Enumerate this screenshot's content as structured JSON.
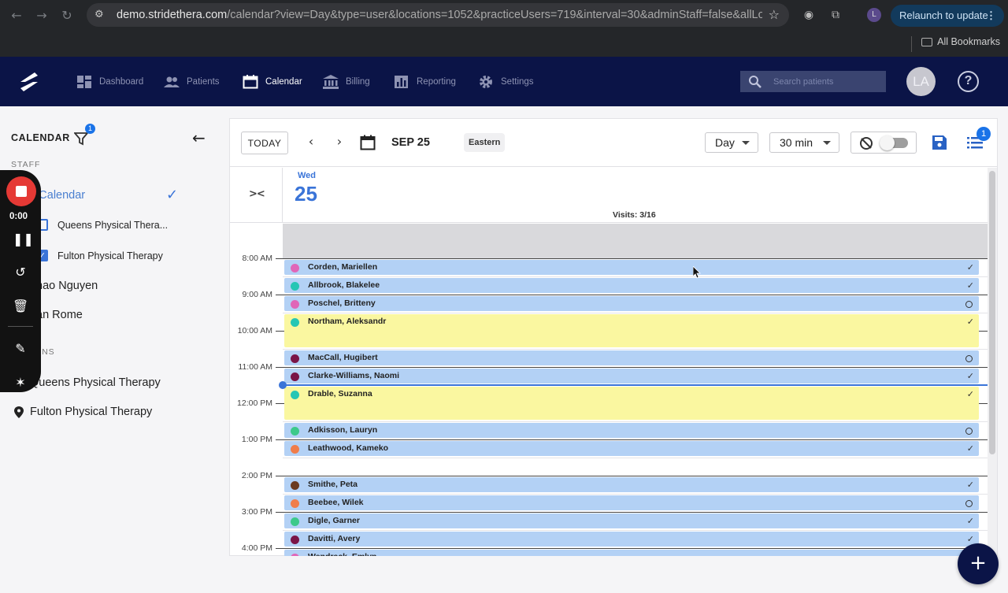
{
  "browser": {
    "url": "demo.stridethera.com/calendar?view=Day&type=user&locations=1052&practiceUsers=719&interval=30&adminStaff=false&allLocati...",
    "url_host": "demo.stridethera.com",
    "url_path": "/calendar?view=Day&type=user&locations=1052&practiceUsers=719&interval=30&adminStaff=false&allLocati...",
    "relaunch_label": "Relaunch to update",
    "profile_initial": "L",
    "bookmarks_label": "All Bookmarks"
  },
  "nav": {
    "items": [
      {
        "label": "Dashboard",
        "icon": "dashboard-icon",
        "active": false
      },
      {
        "label": "Patients",
        "icon": "people-icon",
        "active": false
      },
      {
        "label": "Calendar",
        "icon": "calendar-icon",
        "active": true
      },
      {
        "label": "Billing",
        "icon": "bank-icon",
        "active": false
      },
      {
        "label": "Reporting",
        "icon": "bar-chart-icon",
        "active": false
      },
      {
        "label": "Settings",
        "icon": "gear-icon",
        "active": false
      }
    ],
    "search_placeholder": "Search patients",
    "avatar_initials": "LA",
    "help_glyph": "?"
  },
  "sidebar": {
    "title": "CALENDAR",
    "filter_badge": "1",
    "staff_label": "STAFF",
    "my_calendar_label": "y Calendar",
    "my_calendar_locations": [
      {
        "label": "Queens Physical Thera...",
        "checked": false
      },
      {
        "label": "Fulton Physical Therapy",
        "checked": true
      }
    ],
    "staff": [
      "hao Nguyen",
      "an Rome"
    ],
    "locations_label": "IONS",
    "locations": [
      "Queens Physical Therapy",
      "Fulton Physical Therapy"
    ]
  },
  "recorder": {
    "time": "0:00"
  },
  "toolbar": {
    "today_label": "TODAY",
    "date_label": "SEP 25",
    "timezone": "Eastern",
    "view_select": "Day",
    "interval_select": "30 min",
    "list_badge": "1"
  },
  "day": {
    "dow": "Wed",
    "dom": "25",
    "visits": "Visits: 3/16"
  },
  "time_labels": [
    "8:00 AM",
    "9:00 AM",
    "10:00 AM",
    "11:00 AM",
    "12:00 PM",
    "1:00 PM",
    "2:00 PM",
    "3:00 PM",
    "4:00 PM"
  ],
  "appointments": [
    {
      "name": "Corden, Mariellen",
      "dot": "#e066b8",
      "status": "check",
      "color": "#b3d1f5",
      "slots": 1
    },
    {
      "name": "Allbrook, Blakelee",
      "dot": "#26c6b4",
      "status": "check",
      "color": "#b3d1f5",
      "slots": 1
    },
    {
      "name": "Poschel, Britteny",
      "dot": "#e066b8",
      "status": "circle",
      "color": "#b3d1f5",
      "slots": 1
    },
    {
      "name": "Northam, Aleksandr",
      "dot": "#26c6b4",
      "status": "check",
      "color": "#faf7a0",
      "slots": 2
    },
    {
      "name": "MacCall, Hugibert",
      "dot": "#7a1447",
      "status": "circle",
      "color": "#b3d1f5",
      "slots": 1
    },
    {
      "name": "Clarke-Williams, Naomi",
      "dot": "#7a1447",
      "status": "check",
      "color": "#b3d1f5",
      "slots": 1
    },
    {
      "name": "Drable, Suzanna",
      "dot": "#26c6b4",
      "status": "check",
      "color": "#faf7a0",
      "slots": 2
    },
    {
      "name": "Adkisson, Lauryn",
      "dot": "#3cc98a",
      "status": "circle",
      "color": "#b3d1f5",
      "slots": 1
    },
    {
      "name": "Leathwood, Kameko",
      "dot": "#f07d4a",
      "status": "check",
      "color": "#b3d1f5",
      "slots": 1
    },
    {
      "name": "Smithe, Peta",
      "dot": "#6b3a1f",
      "status": "check",
      "color": "#b3d1f5",
      "slots": 1
    },
    {
      "name": "Beebee, Wilek",
      "dot": "#f07d4a",
      "status": "circle",
      "color": "#b3d1f5",
      "slots": 1
    },
    {
      "name": "Digle, Garner",
      "dot": "#3cc98a",
      "status": "check",
      "color": "#b3d1f5",
      "slots": 1
    },
    {
      "name": "Davitti, Avery",
      "dot": "#7a1447",
      "status": "check",
      "color": "#b3d1f5",
      "slots": 1
    },
    {
      "name": "Wendrack, Emlyn",
      "dot": "#e066b8",
      "status": "none",
      "color": "#b3d1f5",
      "slots": 1
    }
  ],
  "fab_glyph": "+",
  "colors": {
    "header_bg": "#0b1447",
    "accent": "#3a74d8",
    "badge": "#1a73e8"
  }
}
